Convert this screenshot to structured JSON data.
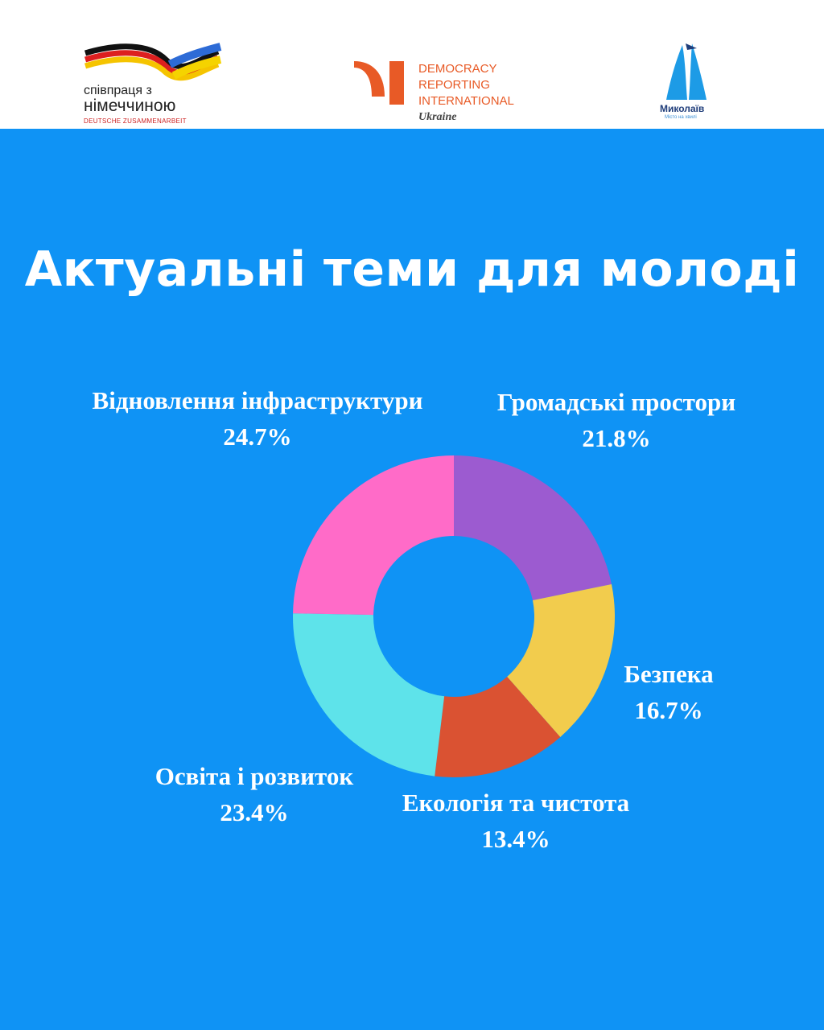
{
  "header": {
    "logo_cooperation": {
      "line1": "співпраця з",
      "line2": "німеччиною",
      "line3": "DEUTSCHE ZUSAMMENARBEIT"
    },
    "logo_dri": {
      "line1": "DEMOCRACY",
      "line2": "REPORTING",
      "line3": "INTERNATIONAL",
      "line4": "Ukraine"
    },
    "logo_mykolaiv": {
      "name": "Миколаїв",
      "sub": "Місто на хвилі"
    }
  },
  "title": "Актуальні теми для молоді",
  "chart_data": {
    "type": "pie",
    "variant": "donut",
    "start_angle_deg": 0,
    "direction": "clockwise",
    "slices": [
      {
        "label": "Громадські простори",
        "value": 21.8,
        "value_label": "21.8%",
        "color": "#9c5bd0"
      },
      {
        "label": "Безпека",
        "value": 16.7,
        "value_label": "16.7%",
        "color": "#f2cc4d"
      },
      {
        "label": "Екологія та чистота",
        "value": 13.4,
        "value_label": "13.4%",
        "color": "#da5232"
      },
      {
        "label": "Освіта і розвиток",
        "value": 23.4,
        "value_label": "23.4%",
        "color": "#5ee3ea"
      },
      {
        "label": "Відновлення інфраструктури",
        "value": 24.7,
        "value_label": "24.7%",
        "color": "#ff6bc8"
      }
    ]
  }
}
